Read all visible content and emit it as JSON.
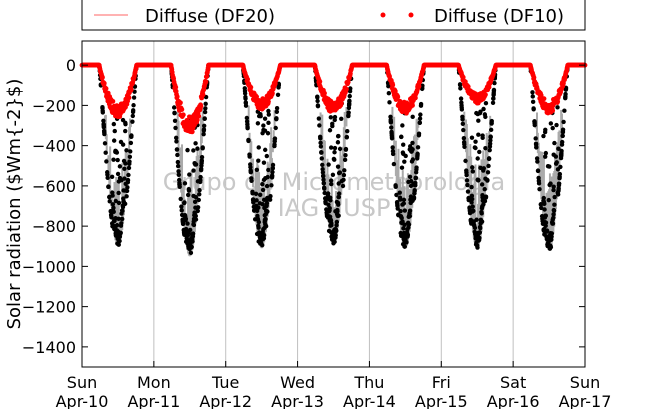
{
  "chart_data": {
    "type": "scatter",
    "title": "",
    "xlabel": "",
    "ylabel": "Solar radiation ($Wm{-2}$)",
    "ylim": [
      -1500,
      120
    ],
    "xlim": [
      0,
      7
    ],
    "x_ticks": [
      {
        "x": 0,
        "day": "Sun",
        "date": "Apr-10"
      },
      {
        "x": 1,
        "day": "Mon",
        "date": "Apr-11"
      },
      {
        "x": 2,
        "day": "Tue",
        "date": "Apr-12"
      },
      {
        "x": 3,
        "day": "Wed",
        "date": "Apr-13"
      },
      {
        "x": 4,
        "day": "Thu",
        "date": "Apr-14"
      },
      {
        "x": 5,
        "day": "Fri",
        "date": "Apr-15"
      },
      {
        "x": 6,
        "day": "Sat",
        "date": "Apr-16"
      },
      {
        "x": 7,
        "day": "Sun",
        "date": "Apr-17"
      }
    ],
    "y_ticks": [
      0,
      -200,
      -400,
      -600,
      -800,
      -1000,
      -1200,
      -1400
    ],
    "grid": "vertical",
    "legend": {
      "placement": "top",
      "entries": [
        {
          "label": "Diffuse (DF20)",
          "style": "line",
          "color": "#ff6666"
        },
        {
          "label": "Diffuse (DF10)",
          "style": "dots",
          "color": "#ff0000"
        }
      ]
    },
    "watermark": [
      "Grupo de Micrometeorologia",
      "IAG - USP"
    ],
    "colors": {
      "global": "#000000",
      "spread": "#aaaaaa",
      "diffuse": "#ff0000"
    },
    "days": [
      {
        "day": "Apr-10",
        "global_min": -900,
        "diffuse_min": -260
      },
      {
        "day": "Apr-11",
        "global_min": -950,
        "diffuse_min": -340
      },
      {
        "day": "Apr-12",
        "global_min": -910,
        "diffuse_min": -220
      },
      {
        "day": "Apr-13",
        "global_min": -890,
        "diffuse_min": -240
      },
      {
        "day": "Apr-14",
        "global_min": -910,
        "diffuse_min": -240
      },
      {
        "day": "Apr-15",
        "global_min": -910,
        "diffuse_min": -190
      },
      {
        "day": "Apr-16",
        "global_min": -920,
        "diffuse_min": -240
      }
    ]
  }
}
